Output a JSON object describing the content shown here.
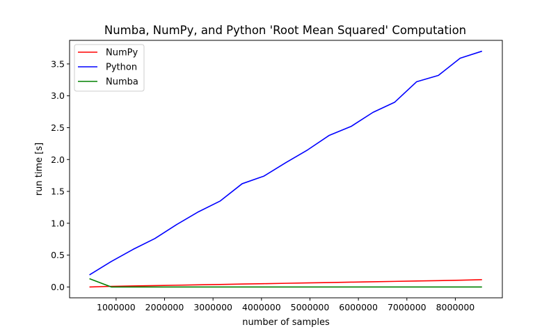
{
  "chart_data": {
    "type": "line",
    "title": "Numba, NumPy, and Python 'Root Mean Squared' Computation",
    "xlabel": "number of samples",
    "ylabel": "run time [s]",
    "xlim": [
      40000,
      8970000
    ],
    "ylim": [
      -0.17,
      3.87
    ],
    "xticks": [
      1000000,
      2000000,
      3000000,
      4000000,
      5000000,
      6000000,
      7000000,
      8000000
    ],
    "xtick_labels": [
      "1000000",
      "2000000",
      "3000000",
      "4000000",
      "5000000",
      "6000000",
      "7000000",
      "8000000"
    ],
    "yticks": [
      0.0,
      0.5,
      1.0,
      1.5,
      2.0,
      2.5,
      3.0,
      3.5
    ],
    "ytick_labels": [
      "0.0",
      "0.5",
      "1.0",
      "1.5",
      "2.0",
      "2.5",
      "3.0",
      "3.5"
    ],
    "grid": false,
    "legend_position": "top-left",
    "x": [
      450000,
      900000,
      1350000,
      1800000,
      2250000,
      2700000,
      3150000,
      3600000,
      4050000,
      4500000,
      4950000,
      5400000,
      5850000,
      6300000,
      6750000,
      7200000,
      7650000,
      8100000,
      8550000
    ],
    "series": [
      {
        "name": "NumPy",
        "color": "#ff0000",
        "values": [
          0.0,
          0.01,
          0.016,
          0.022,
          0.028,
          0.034,
          0.04,
          0.046,
          0.052,
          0.058,
          0.064,
          0.07,
          0.076,
          0.082,
          0.088,
          0.094,
          0.1,
          0.106,
          0.115
        ]
      },
      {
        "name": "Python",
        "color": "#0000ff",
        "values": [
          0.19,
          0.4,
          0.59,
          0.76,
          0.98,
          1.18,
          1.35,
          1.62,
          1.74,
          1.95,
          2.15,
          2.38,
          2.52,
          2.74,
          2.9,
          3.22,
          3.32,
          3.59,
          3.7
        ]
      },
      {
        "name": "Numba",
        "color": "#008000",
        "values": [
          0.13,
          0.0,
          0.0,
          0.0,
          0.0,
          0.0,
          0.0,
          0.0,
          0.0,
          0.0,
          0.0,
          0.0,
          0.0,
          0.0,
          0.0,
          0.0,
          0.0,
          0.0,
          0.0
        ]
      }
    ]
  }
}
